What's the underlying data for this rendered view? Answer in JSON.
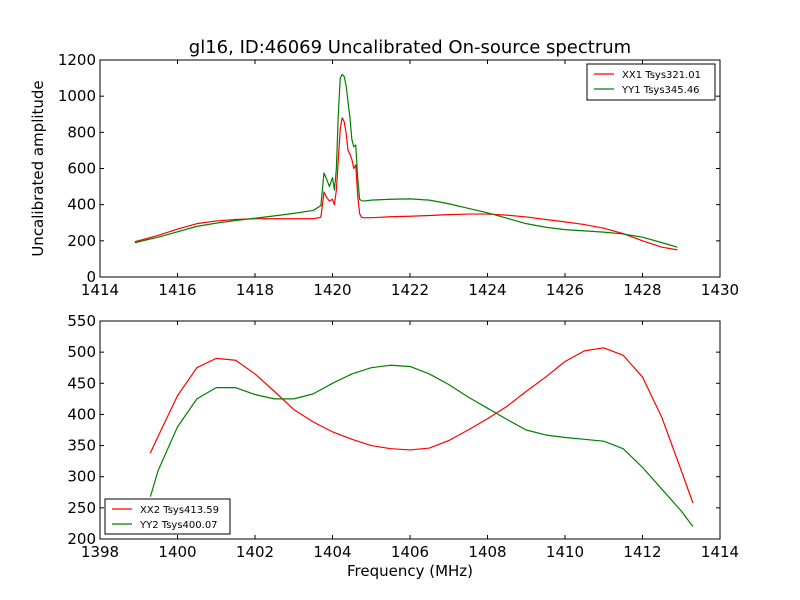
{
  "figure_title": "gl16, ID:46069 Uncalibrated On-source spectrum",
  "chart_data": [
    {
      "type": "line",
      "title": "gl16, ID:46069 Uncalibrated On-source spectrum",
      "xlabel": "",
      "ylabel": "Uncalibrated amplitude",
      "xlim": [
        1414,
        1430
      ],
      "ylim": [
        0,
        1200
      ],
      "xticks": [
        1414,
        1416,
        1418,
        1420,
        1422,
        1424,
        1426,
        1428,
        1430
      ],
      "yticks": [
        0,
        200,
        400,
        600,
        800,
        1000,
        1200
      ],
      "grid": false,
      "legend_position": "top-right",
      "series": [
        {
          "name": "XX1 Tsys321.01",
          "color": "#ff0000",
          "x": [
            1414.9,
            1415.5,
            1416,
            1416.5,
            1417,
            1417.5,
            1418,
            1418.5,
            1419,
            1419.5,
            1419.7,
            1419.78,
            1419.85,
            1419.92,
            1420.0,
            1420.05,
            1420.1,
            1420.15,
            1420.2,
            1420.25,
            1420.3,
            1420.35,
            1420.4,
            1420.45,
            1420.5,
            1420.55,
            1420.6,
            1420.65,
            1420.7,
            1420.75,
            1420.8,
            1421,
            1421.5,
            1422,
            1422.5,
            1423,
            1423.5,
            1424,
            1424.5,
            1425,
            1425.5,
            1426,
            1426.5,
            1427,
            1427.5,
            1428,
            1428.5,
            1428.9
          ],
          "y": [
            195,
            230,
            265,
            295,
            310,
            318,
            322,
            322,
            322,
            322,
            330,
            470,
            440,
            420,
            430,
            400,
            480,
            650,
            820,
            880,
            860,
            800,
            700,
            680,
            650,
            600,
            620,
            450,
            350,
            330,
            328,
            328,
            333,
            336,
            340,
            345,
            348,
            348,
            342,
            332,
            318,
            305,
            290,
            270,
            240,
            200,
            165,
            150
          ]
        },
        {
          "name": "YY1 Tsys345.46",
          "color": "#008000",
          "x": [
            1414.9,
            1415.5,
            1416,
            1416.5,
            1417,
            1417.5,
            1418,
            1418.5,
            1419,
            1419.5,
            1419.7,
            1419.78,
            1419.85,
            1419.92,
            1420.0,
            1420.05,
            1420.1,
            1420.15,
            1420.2,
            1420.25,
            1420.3,
            1420.35,
            1420.4,
            1420.45,
            1420.5,
            1420.55,
            1420.6,
            1420.65,
            1420.7,
            1420.75,
            1420.8,
            1421,
            1421.5,
            1422,
            1422.5,
            1423,
            1423.5,
            1424,
            1424.5,
            1425,
            1425.5,
            1426,
            1426.5,
            1427,
            1427.5,
            1428,
            1428.5,
            1428.9
          ],
          "y": [
            190,
            220,
            250,
            280,
            298,
            312,
            325,
            338,
            352,
            368,
            395,
            575,
            540,
            500,
            550,
            480,
            600,
            900,
            1100,
            1120,
            1110,
            1060,
            970,
            880,
            760,
            720,
            730,
            550,
            430,
            422,
            420,
            425,
            430,
            432,
            425,
            405,
            380,
            355,
            325,
            295,
            275,
            262,
            255,
            248,
            238,
            220,
            190,
            165
          ]
        }
      ]
    },
    {
      "type": "line",
      "title": "",
      "xlabel": "Frequency (MHz)",
      "ylabel": "",
      "xlim": [
        1398,
        1414
      ],
      "ylim": [
        200,
        550
      ],
      "xticks": [
        1398,
        1400,
        1402,
        1404,
        1406,
        1408,
        1410,
        1412,
        1414
      ],
      "yticks": [
        200,
        250,
        300,
        350,
        400,
        450,
        500,
        550
      ],
      "grid": false,
      "legend_position": "bottom-left",
      "series": [
        {
          "name": "XX2 Tsys413.59",
          "color": "#ff0000",
          "x": [
            1399.3,
            1399.5,
            1400,
            1400.5,
            1401,
            1401.5,
            1402,
            1402.5,
            1403,
            1403.5,
            1404,
            1404.5,
            1405,
            1405.5,
            1406,
            1406.5,
            1407,
            1407.5,
            1408,
            1408.5,
            1409,
            1409.5,
            1410,
            1410.5,
            1411,
            1411.5,
            1412,
            1412.5,
            1413,
            1413.3
          ],
          "y": [
            338,
            365,
            430,
            475,
            490,
            487,
            465,
            437,
            408,
            388,
            372,
            360,
            350,
            345,
            343,
            346,
            358,
            375,
            393,
            413,
            437,
            460,
            485,
            502,
            507,
            495,
            460,
            395,
            310,
            258
          ]
        },
        {
          "name": "YY2 Tsys400.07",
          "color": "#008000",
          "x": [
            1399.3,
            1399.5,
            1400,
            1400.5,
            1401,
            1401.5,
            1402,
            1402.5,
            1403,
            1403.5,
            1404,
            1404.5,
            1405,
            1405.5,
            1406,
            1406.5,
            1407,
            1407.5,
            1408,
            1408.5,
            1409,
            1409.5,
            1410,
            1410.5,
            1411,
            1411.5,
            1412,
            1412.5,
            1413,
            1413.3
          ],
          "y": [
            268,
            310,
            380,
            425,
            443,
            443,
            432,
            425,
            425,
            433,
            450,
            465,
            475,
            479,
            477,
            465,
            448,
            428,
            410,
            392,
            375,
            367,
            363,
            360,
            357,
            345,
            315,
            280,
            245,
            220
          ]
        }
      ]
    }
  ]
}
